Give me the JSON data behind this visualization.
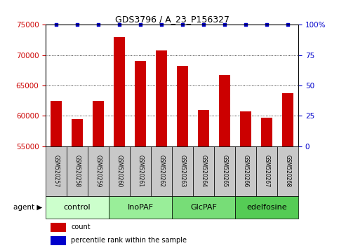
{
  "title": "GDS3796 / A_23_P156327",
  "samples": [
    "GSM520257",
    "GSM520258",
    "GSM520259",
    "GSM520260",
    "GSM520261",
    "GSM520262",
    "GSM520263",
    "GSM520264",
    "GSM520265",
    "GSM520266",
    "GSM520267",
    "GSM520268"
  ],
  "counts": [
    62500,
    59500,
    62500,
    73000,
    69000,
    70800,
    68200,
    61000,
    66800,
    60800,
    59700,
    63800
  ],
  "ylim_left": [
    55000,
    75000
  ],
  "ylim_right": [
    0,
    100
  ],
  "yticks_left": [
    55000,
    60000,
    65000,
    70000,
    75000
  ],
  "yticks_right": [
    0,
    25,
    50,
    75,
    100
  ],
  "bar_color": "#cc0000",
  "dot_color": "#0000cc",
  "groups": [
    {
      "label": "control",
      "start": 0,
      "end": 3,
      "color": "#ccffcc"
    },
    {
      "label": "InoPAF",
      "start": 3,
      "end": 6,
      "color": "#99ee99"
    },
    {
      "label": "GlcPAF",
      "start": 6,
      "end": 9,
      "color": "#77dd77"
    },
    {
      "label": "edelfosine",
      "start": 9,
      "end": 12,
      "color": "#55cc55"
    }
  ],
  "agent_label": "agent",
  "legend_count": "count",
  "legend_percentile": "percentile rank within the sample",
  "left_tick_color": "#cc0000",
  "right_tick_color": "#0000cc",
  "sample_box_color": "#c8c8c8",
  "title_fontsize": 9,
  "bar_fontsize": 6,
  "group_fontsize": 8,
  "legend_fontsize": 7
}
